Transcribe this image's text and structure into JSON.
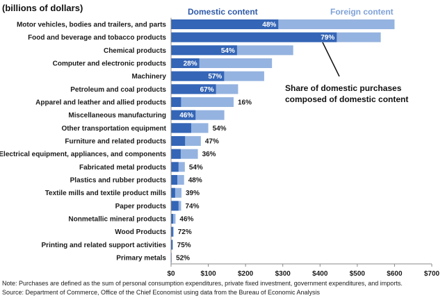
{
  "chart_data": {
    "type": "bar",
    "orientation": "horizontal",
    "stacked": true,
    "subtitle": "(billions of dollars)",
    "categories": [
      "Motor vehicles, bodies and trailers, and parts",
      "Food and beverage and tobacco products",
      "Chemical products",
      "Computer and electronic products",
      "Machinery",
      "Petroleum and coal products",
      "Apparel and leather and allied products",
      "Miscellaneous manufacturing",
      "Other transportation equipment",
      "Furniture and related products",
      "Electrical equipment, appliances, and components",
      "Fabricated metal products",
      "Plastics and rubber products",
      "Textile mills and textile product mills",
      "Paper products",
      "Nonmetallic mineral products",
      "Wood Products",
      "Printing and related support activities",
      "Primary metals"
    ],
    "totals": [
      600,
      563,
      328,
      271,
      250,
      180,
      168,
      143,
      100,
      80,
      72,
      37,
      35,
      28,
      27,
      12,
      7,
      5,
      2
    ],
    "domestic_share_pct": [
      48,
      79,
      54,
      28,
      57,
      67,
      16,
      46,
      54,
      47,
      36,
      54,
      48,
      39,
      74,
      46,
      72,
      75,
      52
    ],
    "share_labels": [
      "48%",
      "79%",
      "54%",
      "28%",
      "57%",
      "67%",
      "16%",
      "46%",
      "54%",
      "47%",
      "36%",
      "54%",
      "48%",
      "39%",
      "74%",
      "46%",
      "72%",
      "75%",
      "52%"
    ],
    "series": [
      {
        "name": "Domestic content",
        "color": "#3465b6"
      },
      {
        "name": "Foreign content",
        "color": "#95b3e0"
      }
    ],
    "xlim": [
      0,
      700
    ],
    "xticks": [
      0,
      100,
      200,
      300,
      400,
      500,
      600,
      700
    ],
    "xtick_labels": [
      "$0",
      "$100",
      "$200",
      "$300",
      "$400",
      "$500",
      "$600",
      "$700"
    ],
    "annotation": [
      "Share of domestic purchases",
      "composed of domestic content"
    ],
    "grid": false,
    "legend_position": "top"
  },
  "notes": {
    "line1": "Note: Purchases are defined as the sum of personal consumption expenditures, private fixed investment, government expenditures, and imports.",
    "line2": "Source: Department of Commerce, Office of the Chief Economist using data from the Bureau of Economic Analysis"
  }
}
